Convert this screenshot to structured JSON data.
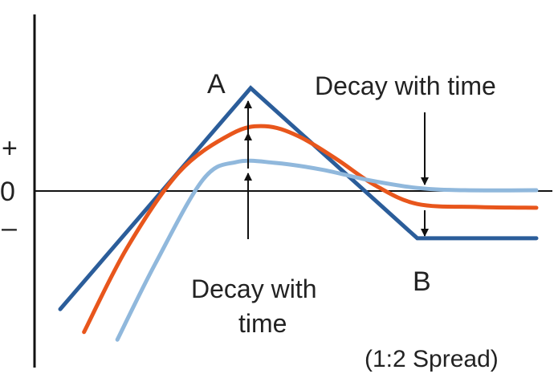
{
  "chart_data": {
    "type": "line",
    "title": "",
    "xlabel": "",
    "ylabel": "",
    "grid": false,
    "y_tick_labels": [
      "+",
      "0",
      "–"
    ],
    "series": [
      {
        "color": "#2b5d9a",
        "x": [
          0.0,
          0.4,
          0.75,
          1.0
        ],
        "y": [
          -1.55,
          1.35,
          -0.62,
          -0.62
        ]
      },
      {
        "color": "#e8561c",
        "x": [
          0.05,
          0.14,
          0.25,
          0.36,
          0.43,
          0.5,
          0.58,
          0.66,
          0.75,
          0.88,
          1.0
        ],
        "y": [
          -1.85,
          -0.75,
          0.25,
          0.75,
          0.85,
          0.72,
          0.42,
          0.08,
          -0.17,
          -0.21,
          -0.22
        ]
      },
      {
        "color": "#90b8dc",
        "x": [
          0.12,
          0.2,
          0.3,
          0.37,
          0.45,
          0.55,
          0.65,
          0.75,
          0.85,
          1.0
        ],
        "y": [
          -1.95,
          -0.95,
          0.15,
          0.38,
          0.37,
          0.28,
          0.14,
          0.04,
          0.01,
          0.01
        ]
      }
    ],
    "annotations": {
      "a": "A",
      "b": "B",
      "decay_top": "Decay with time",
      "decay_bottom_line1": "Decay with",
      "decay_bottom_line2": "time",
      "spread": "(1:2 Spread)"
    }
  }
}
